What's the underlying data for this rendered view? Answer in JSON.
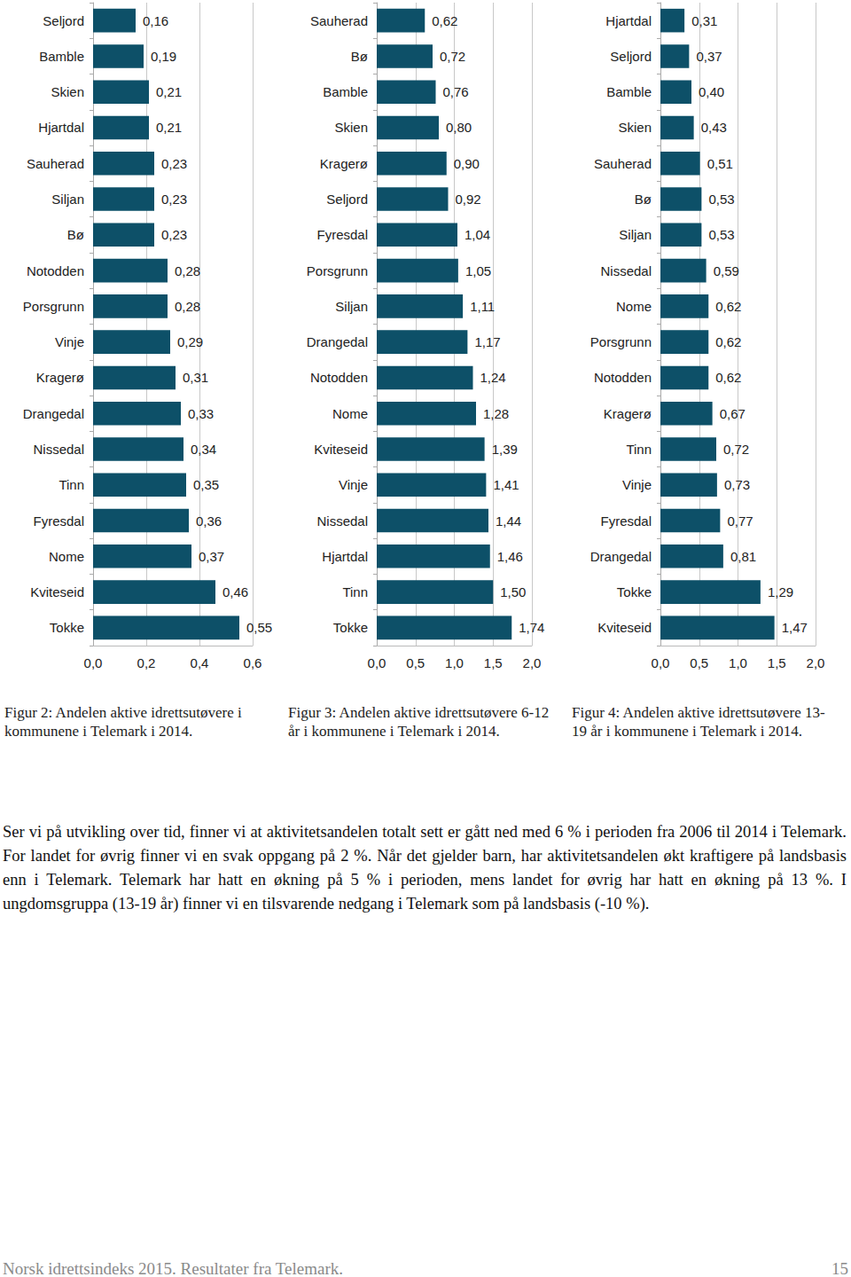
{
  "chart_data": [
    {
      "type": "bar",
      "orientation": "horizontal",
      "title": "Figur 2: Andelen aktive idrettsutøvere i kommunene i Telemark i 2014.",
      "categories": [
        "Seljord",
        "Bamble",
        "Skien",
        "Hjartdal",
        "Sauherad",
        "Siljan",
        "Bø",
        "Notodden",
        "Porsgrunn",
        "Vinje",
        "Kragerø",
        "Drangedal",
        "Nissedal",
        "Tinn",
        "Fyresdal",
        "Nome",
        "Kviteseid",
        "Tokke"
      ],
      "values": [
        0.16,
        0.19,
        0.21,
        0.21,
        0.23,
        0.23,
        0.23,
        0.28,
        0.28,
        0.29,
        0.31,
        0.33,
        0.34,
        0.35,
        0.36,
        0.37,
        0.46,
        0.55
      ],
      "value_labels": [
        "0,16",
        "0,19",
        "0,21",
        "0,21",
        "0,23",
        "0,23",
        "0,23",
        "0,28",
        "0,28",
        "0,29",
        "0,31",
        "0,33",
        "0,34",
        "0,35",
        "0,36",
        "0,37",
        "0,46",
        "0,55"
      ],
      "color": "#0d5068",
      "xlim": [
        0,
        0.6
      ],
      "xticks": [
        {
          "value": 0,
          "label": "0,0"
        },
        {
          "value": 0.2,
          "label": "0,2"
        },
        {
          "value": 0.4,
          "label": "0,4"
        },
        {
          "value": 0.6,
          "label": "0,6"
        }
      ],
      "grid": true,
      "data_labels": true
    },
    {
      "type": "bar",
      "orientation": "horizontal",
      "title": "Figur 3: Andelen aktive idrettsutøvere 6-12 år i kommunene i Telemark i 2014.",
      "categories": [
        "Sauherad",
        "Bø",
        "Bamble",
        "Skien",
        "Kragerø",
        "Seljord",
        "Fyresdal",
        "Porsgrunn",
        "Siljan",
        "Drangedal",
        "Notodden",
        "Nome",
        "Kviteseid",
        "Vinje",
        "Nissedal",
        "Hjartdal",
        "Tinn",
        "Tokke"
      ],
      "values": [
        0.62,
        0.72,
        0.76,
        0.8,
        0.9,
        0.92,
        1.04,
        1.05,
        1.11,
        1.17,
        1.24,
        1.28,
        1.39,
        1.41,
        1.44,
        1.46,
        1.5,
        1.74
      ],
      "value_labels": [
        "0,62",
        "0,72",
        "0,76",
        "0,80",
        "0,90",
        "0,92",
        "1,04",
        "1,05",
        "1,11",
        "1,17",
        "1,24",
        "1,28",
        "1,39",
        "1,41",
        "1,44",
        "1,46",
        "1,50",
        "1,74"
      ],
      "color": "#0d5068",
      "xlim": [
        0,
        2
      ],
      "xticks": [
        {
          "value": 0,
          "label": "0,0"
        },
        {
          "value": 0.5,
          "label": "0,5"
        },
        {
          "value": 1,
          "label": "1,0"
        },
        {
          "value": 1.5,
          "label": "1,5"
        },
        {
          "value": 2,
          "label": "2,0"
        }
      ],
      "grid": true,
      "data_labels": true
    },
    {
      "type": "bar",
      "orientation": "horizontal",
      "title": "Figur 4: Andelen aktive idrettsutøvere 13-19 år i kommunene i Telemark i 2014.",
      "categories": [
        "Hjartdal",
        "Seljord",
        "Bamble",
        "Skien",
        "Sauherad",
        "Bø",
        "Siljan",
        "Nissedal",
        "Nome",
        "Porsgrunn",
        "Notodden",
        "Kragerø",
        "Tinn",
        "Vinje",
        "Fyresdal",
        "Drangedal",
        "Tokke",
        "Kviteseid"
      ],
      "values": [
        0.31,
        0.37,
        0.4,
        0.43,
        0.51,
        0.53,
        0.53,
        0.59,
        0.62,
        0.62,
        0.62,
        0.67,
        0.72,
        0.73,
        0.77,
        0.81,
        1.29,
        1.47
      ],
      "value_labels": [
        "0,31",
        "0,37",
        "0,40",
        "0,43",
        "0,51",
        "0,53",
        "0,53",
        "0,59",
        "0,62",
        "0,62",
        "0,62",
        "0,67",
        "0,72",
        "0,73",
        "0,77",
        "0,81",
        "1,29",
        "1,47"
      ],
      "color": "#0d5068",
      "xlim": [
        0,
        2
      ],
      "xticks": [
        {
          "value": 0,
          "label": "0,0"
        },
        {
          "value": 0.5,
          "label": "0,5"
        },
        {
          "value": 1,
          "label": "1,0"
        },
        {
          "value": 1.5,
          "label": "1,5"
        },
        {
          "value": 2,
          "label": "2,0"
        }
      ],
      "grid": true,
      "data_labels": true
    }
  ],
  "paragraph": "Ser vi på utvikling over tid, finner vi at aktivitetsandelen totalt sett er gått ned med 6 % i perioden fra 2006 til 2014 i Telemark. For landet for øvrig finner vi en svak oppgang på 2 %. Når det gjelder barn, har aktivitetsandelen økt kraftigere på landsbasis enn i Telemark. Telemark har hatt en økning på 5 % i perioden, mens landet for øvrig har hatt en økning på 13 %. I ungdomsgruppa (13-19 år) finner vi en tilsvarende nedgang i Telemark som på landsbasis (-10 %).",
  "footer": {
    "text": "Norsk idrettsindeks 2015. Resultater fra Telemark.",
    "page": 15
  }
}
